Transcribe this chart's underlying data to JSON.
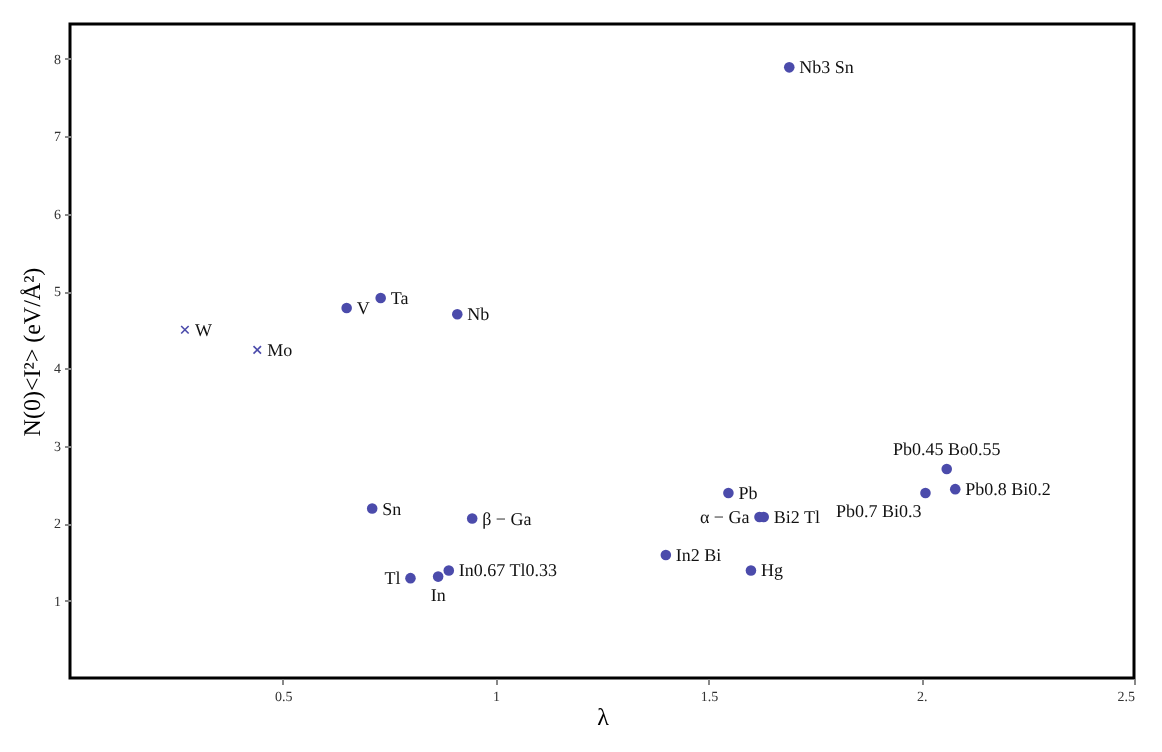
{
  "chart_data": {
    "type": "scatter",
    "xlabel": "λ",
    "ylabel": "N(0)<I²> (eV/Å²)",
    "xlim": [
      0,
      2.5
    ],
    "xticks": [
      0.5,
      1,
      1.5,
      {
        "value": 2,
        "label": "2."
      },
      2.5
    ],
    "ylim": [
      0,
      8.45
    ],
    "yticks": [
      1,
      2,
      3,
      4,
      5,
      6,
      7,
      8
    ],
    "grid": false,
    "series": [
      {
        "color": "#4b4bab",
        "marker": "circle",
        "x": [
          0.65,
          0.73,
          0.91,
          1.69,
          0.71,
          0.945,
          0.8,
          0.865,
          0.89,
          1.547,
          1.62,
          1.63,
          1.4,
          1.6,
          2.06,
          2.08,
          2.01
        ],
        "values": [
          4.78,
          4.91,
          4.7,
          7.89,
          2.19,
          2.06,
          1.29,
          1.31,
          1.39,
          2.39,
          2.08,
          2.08,
          1.59,
          1.39,
          2.7,
          2.44,
          2.39
        ]
      },
      {
        "color": "#4b4bab",
        "marker": "cross",
        "x": [
          0.27,
          0.44
        ],
        "values": [
          4.5,
          4.24
        ]
      }
    ],
    "annotations": [
      {
        "text": "W",
        "x": 0.27,
        "y": 4.5
      },
      {
        "text": "Mo",
        "x": 0.44,
        "y": 4.24
      },
      {
        "text": "V",
        "x": 0.65,
        "y": 4.78
      },
      {
        "text": "Ta",
        "x": 0.73,
        "y": 4.91
      },
      {
        "text": "Nb",
        "x": 0.91,
        "y": 4.7
      },
      {
        "text": "Nb3 Sn",
        "x": 1.69,
        "y": 7.89
      },
      {
        "text": "Sn",
        "x": 0.71,
        "y": 2.19
      },
      {
        "text": "β − Ga",
        "x": 0.945,
        "y": 2.06
      },
      {
        "text": "Tl",
        "x": 0.8,
        "y": 1.29
      },
      {
        "text": "In",
        "x": 0.865,
        "y": 1.31
      },
      {
        "text": "In0.67 Tl0.33",
        "x": 0.89,
        "y": 1.39
      },
      {
        "text": "Pb",
        "x": 1.547,
        "y": 2.39
      },
      {
        "text": "α − Ga",
        "x": 1.62,
        "y": 2.08
      },
      {
        "text": "Bi2 Tl",
        "x": 1.63,
        "y": 2.08
      },
      {
        "text": "In2 Bi",
        "x": 1.4,
        "y": 1.59
      },
      {
        "text": "Hg",
        "x": 1.6,
        "y": 1.39
      },
      {
        "text": "Pb0.45 Bo0.55",
        "x": 2.06,
        "y": 2.7
      },
      {
        "text": "Pb0.8 Bi0.2",
        "x": 2.08,
        "y": 2.44
      },
      {
        "text": "Pb0.7 Bi0.3",
        "x": 2.01,
        "y": 2.39
      }
    ]
  }
}
